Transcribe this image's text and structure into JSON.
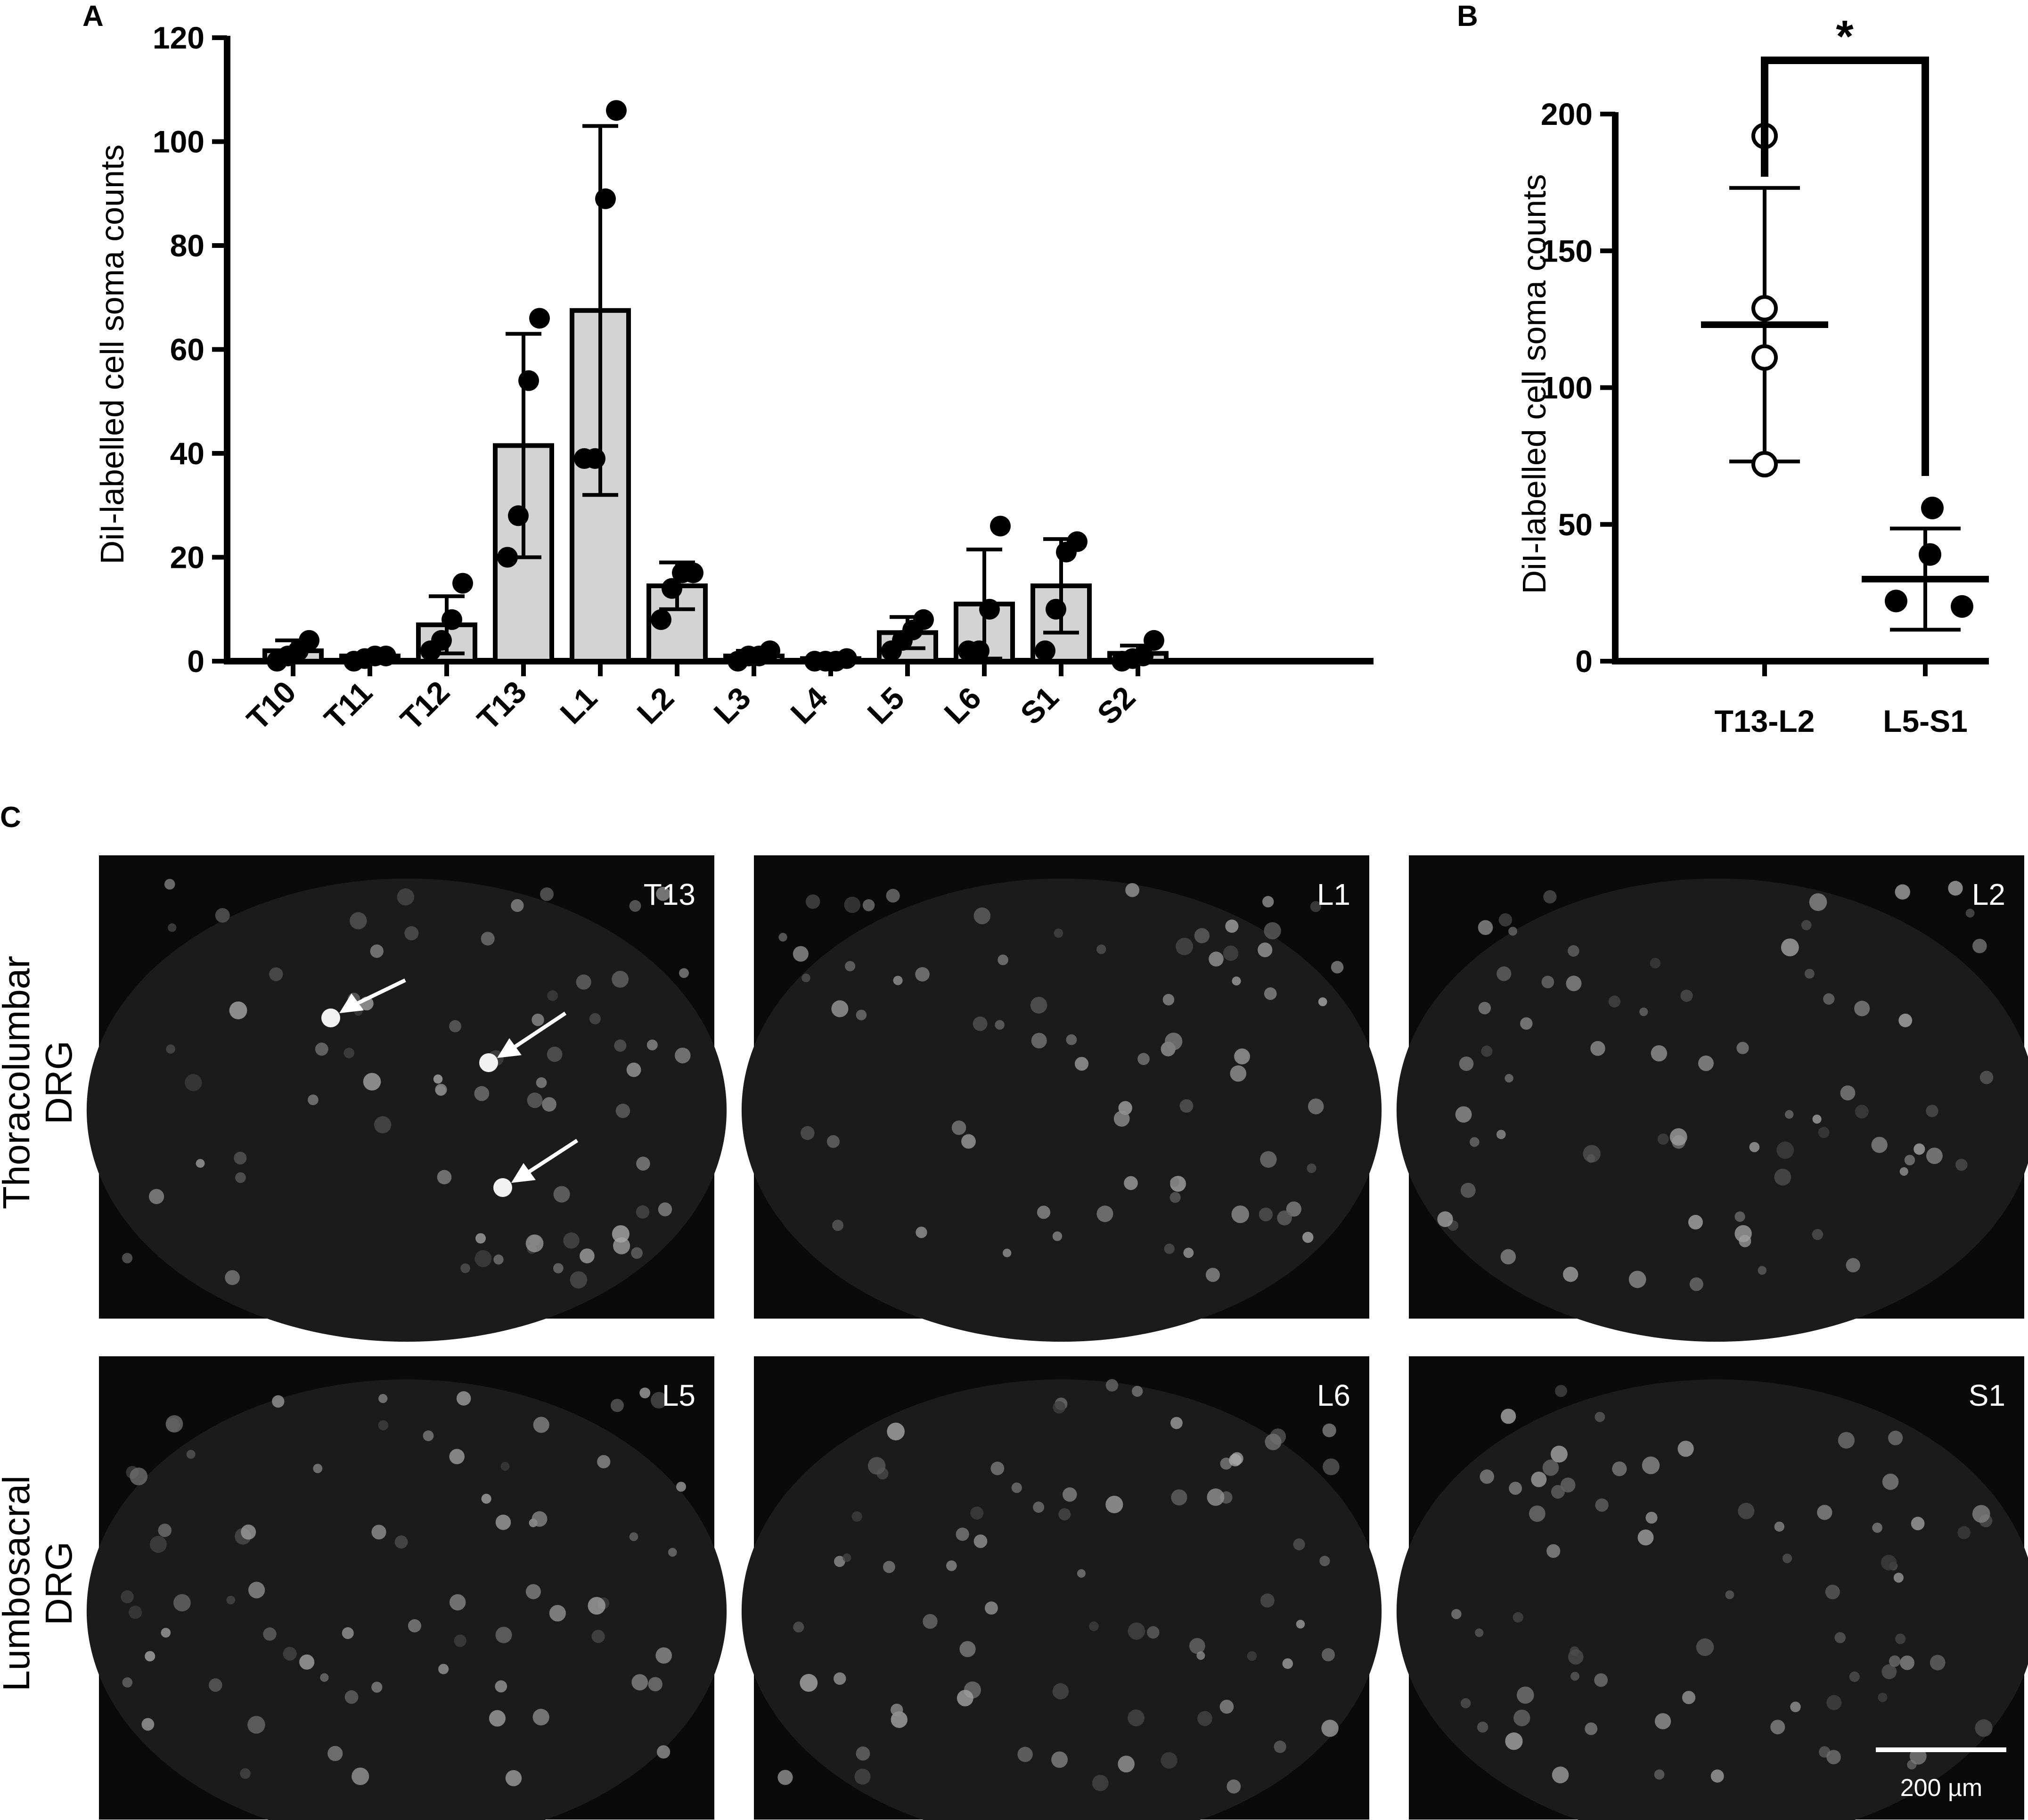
{
  "figure": {
    "panel_letters": [
      "A",
      "B",
      "C"
    ],
    "row_labels": [
      [
        "Thoracolumbar",
        "DRG"
      ],
      [
        "Lumbosacral",
        "DRG"
      ]
    ],
    "micrographs": [
      {
        "label": "T13",
        "row": 0,
        "col": 0
      },
      {
        "label": "L1",
        "row": 0,
        "col": 1
      },
      {
        "label": "L2",
        "row": 0,
        "col": 2
      },
      {
        "label": "L5",
        "row": 1,
        "col": 0
      },
      {
        "label": "L6",
        "row": 1,
        "col": 1
      },
      {
        "label": "S1",
        "row": 1,
        "col": 2
      }
    ],
    "scale_bar": "200 µm",
    "colors": {
      "bar_fill": "#d3d3d3",
      "micrograph_bg": "#1b1b1b"
    }
  },
  "chart_data": [
    {
      "panel": "A",
      "type": "bar",
      "ylabel": "DiI-labelled cell soma counts",
      "xlabel": "",
      "ylim": [
        0,
        120
      ],
      "yticks": [
        0,
        20,
        40,
        60,
        80,
        100,
        120
      ],
      "categories": [
        "T10",
        "T11",
        "T12",
        "T13",
        "L1",
        "L2",
        "L3",
        "L4",
        "L5",
        "L6",
        "S1",
        "S2"
      ],
      "means": [
        2,
        1,
        7,
        41.5,
        67.5,
        14.5,
        1,
        0.5,
        5.5,
        11,
        14.5,
        1.5
      ],
      "sd": [
        2,
        0.5,
        5.5,
        21.5,
        35.5,
        4.5,
        1,
        0.5,
        3,
        10.5,
        9,
        1.5
      ],
      "points": [
        [
          0,
          1,
          2,
          4
        ],
        [
          0,
          0.5,
          1,
          1
        ],
        [
          2,
          4,
          8,
          15
        ],
        [
          20,
          28,
          54,
          66
        ],
        [
          39,
          39,
          89,
          106
        ],
        [
          8,
          14,
          17,
          17
        ],
        [
          0,
          1,
          1,
          2
        ],
        [
          0,
          0,
          0,
          0.5
        ],
        [
          2,
          4,
          6,
          8
        ],
        [
          2,
          2,
          10,
          26
        ],
        [
          2,
          10,
          21,
          23
        ],
        [
          0,
          0.5,
          1,
          4
        ]
      ],
      "grid": false,
      "legend": "none"
    },
    {
      "panel": "B",
      "type": "scatter",
      "ylabel": "DiI-labelled cell soma counts",
      "ylim": [
        0,
        200
      ],
      "yticks": [
        0,
        50,
        100,
        150,
        200
      ],
      "categories": [
        "T13-L2",
        "L5-S1"
      ],
      "means": [
        123,
        30
      ],
      "sd": [
        50,
        18.5
      ],
      "points": [
        [
          192,
          129,
          111,
          72
        ],
        [
          56,
          39,
          22,
          20
        ]
      ],
      "markers": [
        "open",
        "filled"
      ],
      "significance": "*",
      "grid": false,
      "legend": "none"
    }
  ]
}
